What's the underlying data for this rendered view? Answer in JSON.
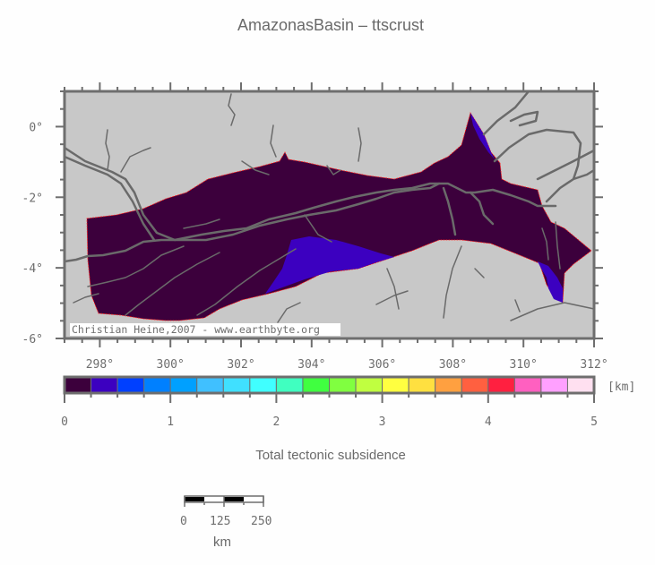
{
  "title": "AmazonasBasin – ttscrust",
  "map": {
    "lon_range": [
      297,
      312
    ],
    "lat_range": [
      -6,
      1
    ],
    "x_tick_labels": [
      "298°",
      "300°",
      "302°",
      "304°",
      "306°",
      "308°",
      "310°",
      "312°"
    ],
    "y_tick_labels": [
      "0°",
      "-2°",
      "-4°",
      "-6°"
    ],
    "credit": "Christian Heine,2007 - www.earthbyte.org",
    "colors": {
      "land": "#c8c8c8",
      "frame": "#6e6e6e",
      "rivers": "#6a6a6a",
      "basin_0_025": "#3c003c",
      "basin_025_05": "#3c00c0",
      "outline": "#ff2020"
    }
  },
  "colorbar": {
    "unit": "[km]",
    "title": "Total tectonic subsidence",
    "tick_labels": [
      "0",
      "1",
      "2",
      "3",
      "4",
      "5"
    ],
    "min": 0,
    "max": 5,
    "step": 0.25,
    "colors": [
      "#3c003c",
      "#3c00c0",
      "#0040ff",
      "#0080ff",
      "#00a0ff",
      "#40c0ff",
      "#40e0ff",
      "#40ffff",
      "#40ffc0",
      "#40ff40",
      "#80ff40",
      "#c0ff40",
      "#ffff40",
      "#ffe040",
      "#ffa040",
      "#ff6040",
      "#ff2040",
      "#ff60c0",
      "#ffa0ff",
      "#ffe0f0"
    ]
  },
  "scale_bar": {
    "labels": [
      "0",
      "125",
      "250"
    ],
    "unit": "km"
  }
}
